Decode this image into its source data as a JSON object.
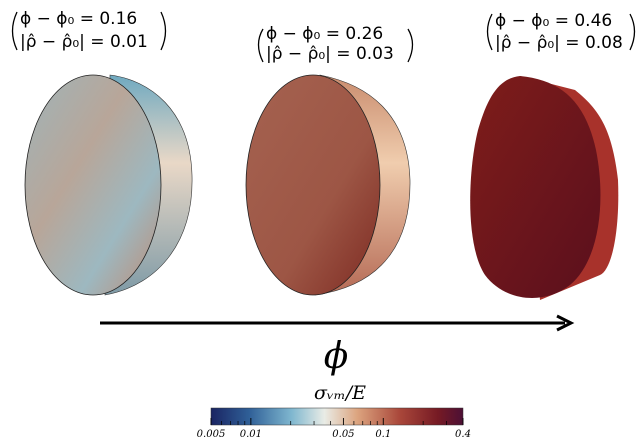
{
  "panels": [
    {
      "line1": "ϕ − ϕ₀ = 0.16",
      "line2": "|ρ̂ − ρ̂₀| = 0.01"
    },
    {
      "line1": "ϕ − ϕ₀ = 0.26",
      "line2": "|ρ̂ − ρ̂₀| = 0.03"
    },
    {
      "line1": "ϕ − ϕ₀ = 0.46",
      "line2": "|ρ̂ − ρ̂₀| = 0.08"
    }
  ],
  "axis_label": "ϕ",
  "colorbar": {
    "title": "σᵥₘ/E",
    "scale": "log",
    "lim": [
      0.005,
      0.4
    ],
    "ticks": [
      0.005,
      0.01,
      0.05,
      0.1,
      0.4
    ],
    "minor_ticks": [
      0.006,
      0.007,
      0.008,
      0.009,
      0.02,
      0.03,
      0.04,
      0.06,
      0.07,
      0.08,
      0.09,
      0.2,
      0.3
    ]
  }
}
